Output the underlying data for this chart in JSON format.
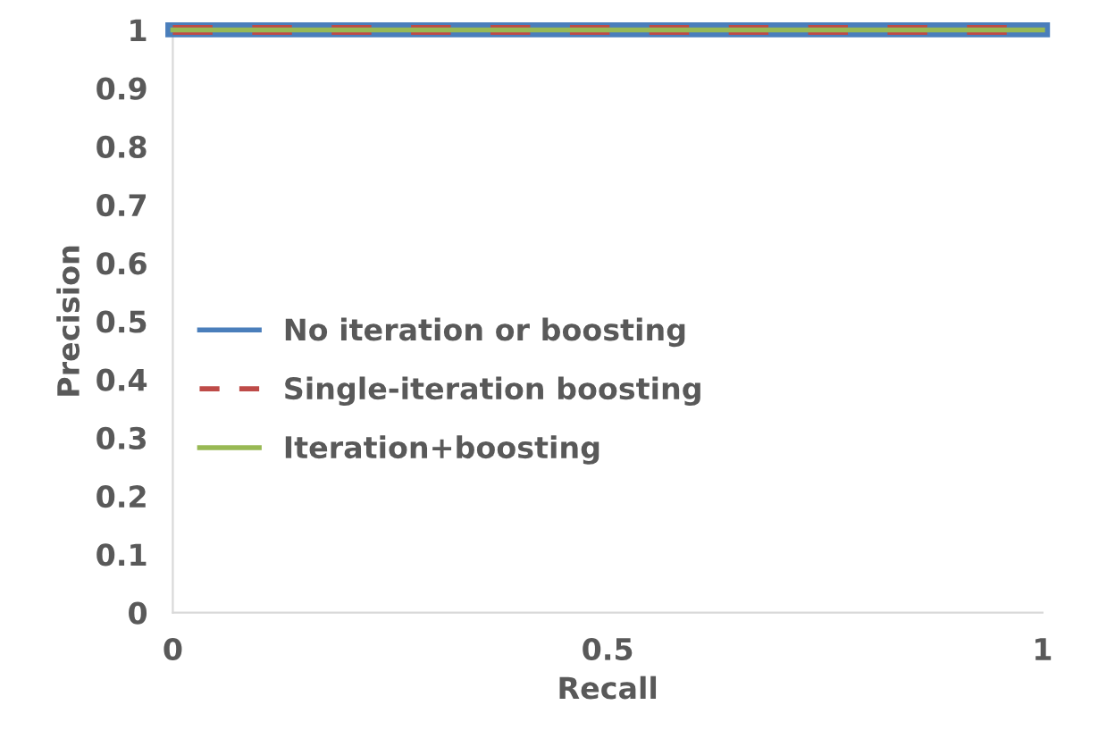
{
  "chart_data": {
    "type": "line",
    "xlabel": "Recall",
    "ylabel": "Precision",
    "x": [
      0,
      1
    ],
    "series": [
      {
        "name": "No iteration or boosting",
        "color": "#4a7ebb",
        "values": [
          1,
          1
        ],
        "line_style": "solid"
      },
      {
        "name": "Single-iteration boosting",
        "color": "#be4b48",
        "values": [
          1,
          1
        ],
        "line_style": "dashed"
      },
      {
        "name": "Iteration+boosting",
        "color": "#98b954",
        "values": [
          1,
          1
        ],
        "line_style": "solid"
      }
    ],
    "xlim": [
      0,
      1
    ],
    "xticks": [
      0,
      0.5,
      1
    ],
    "ylim": [
      0,
      1
    ],
    "yticks": [
      0,
      0.1,
      0.2,
      0.3,
      0.4,
      0.5,
      0.6,
      0.7,
      0.8,
      0.9,
      1
    ],
    "grid": false,
    "legend": "left",
    "marker": "none"
  }
}
